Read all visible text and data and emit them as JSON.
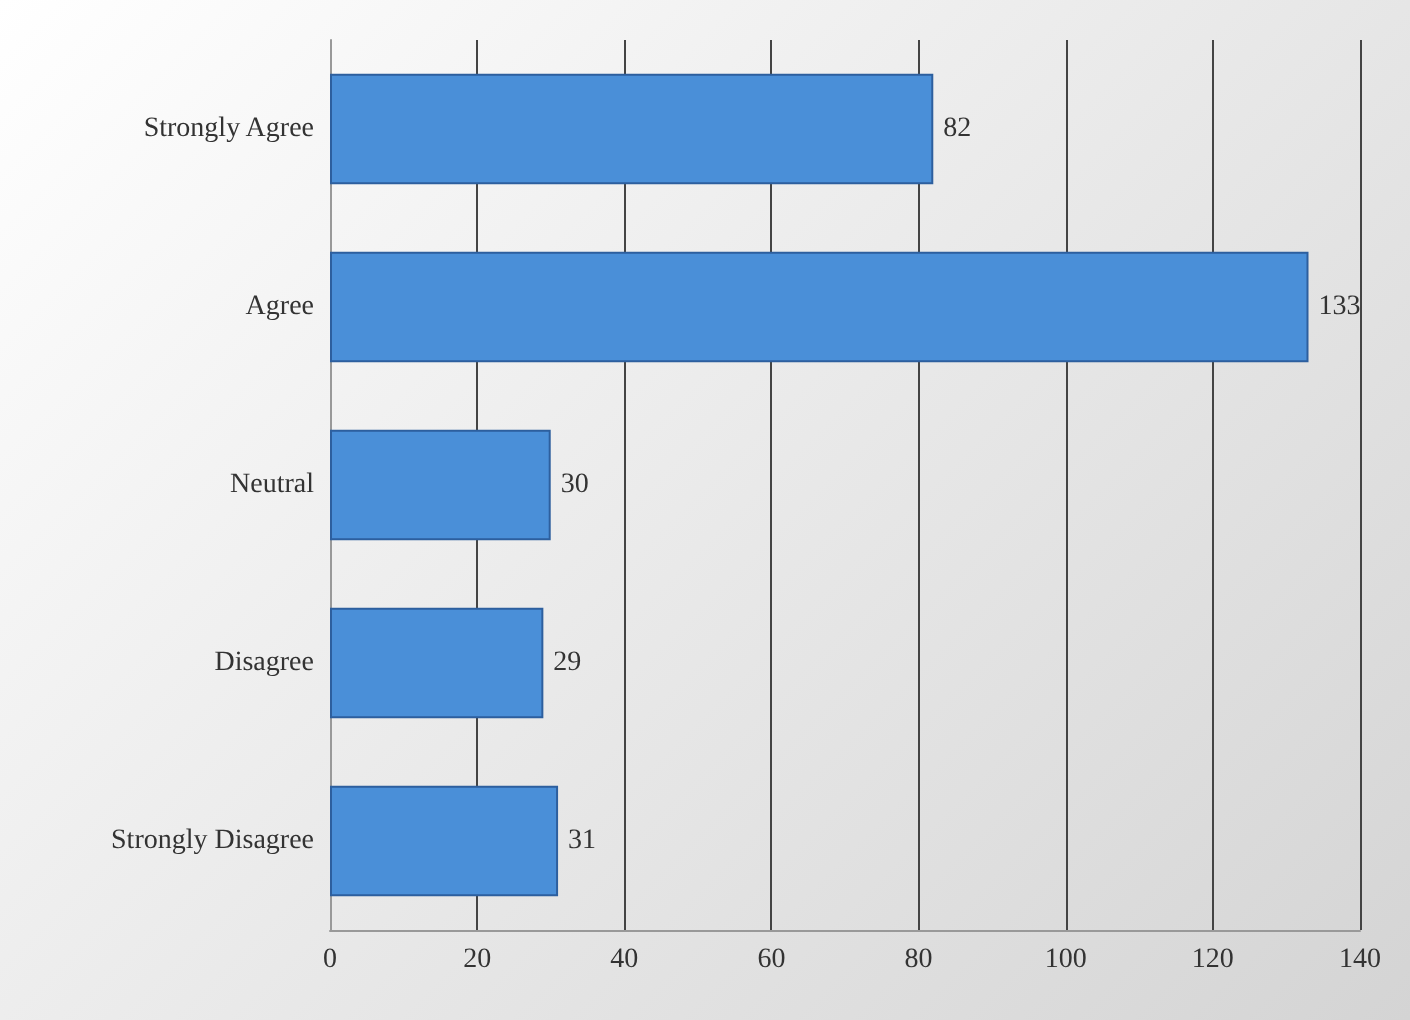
{
  "chart_data": {
    "type": "bar",
    "orientation": "horizontal",
    "categories": [
      "Strongly Agree",
      "Agree",
      "Neutral",
      "Disagree",
      "Strongly Disagree"
    ],
    "values": [
      82,
      133,
      30,
      29,
      31
    ],
    "color": "#4a8fd8",
    "xlim": [
      0,
      140
    ],
    "xticks": [
      0,
      20,
      40,
      60,
      80,
      100,
      120,
      140
    ],
    "grid": "x",
    "data_labels": true
  }
}
